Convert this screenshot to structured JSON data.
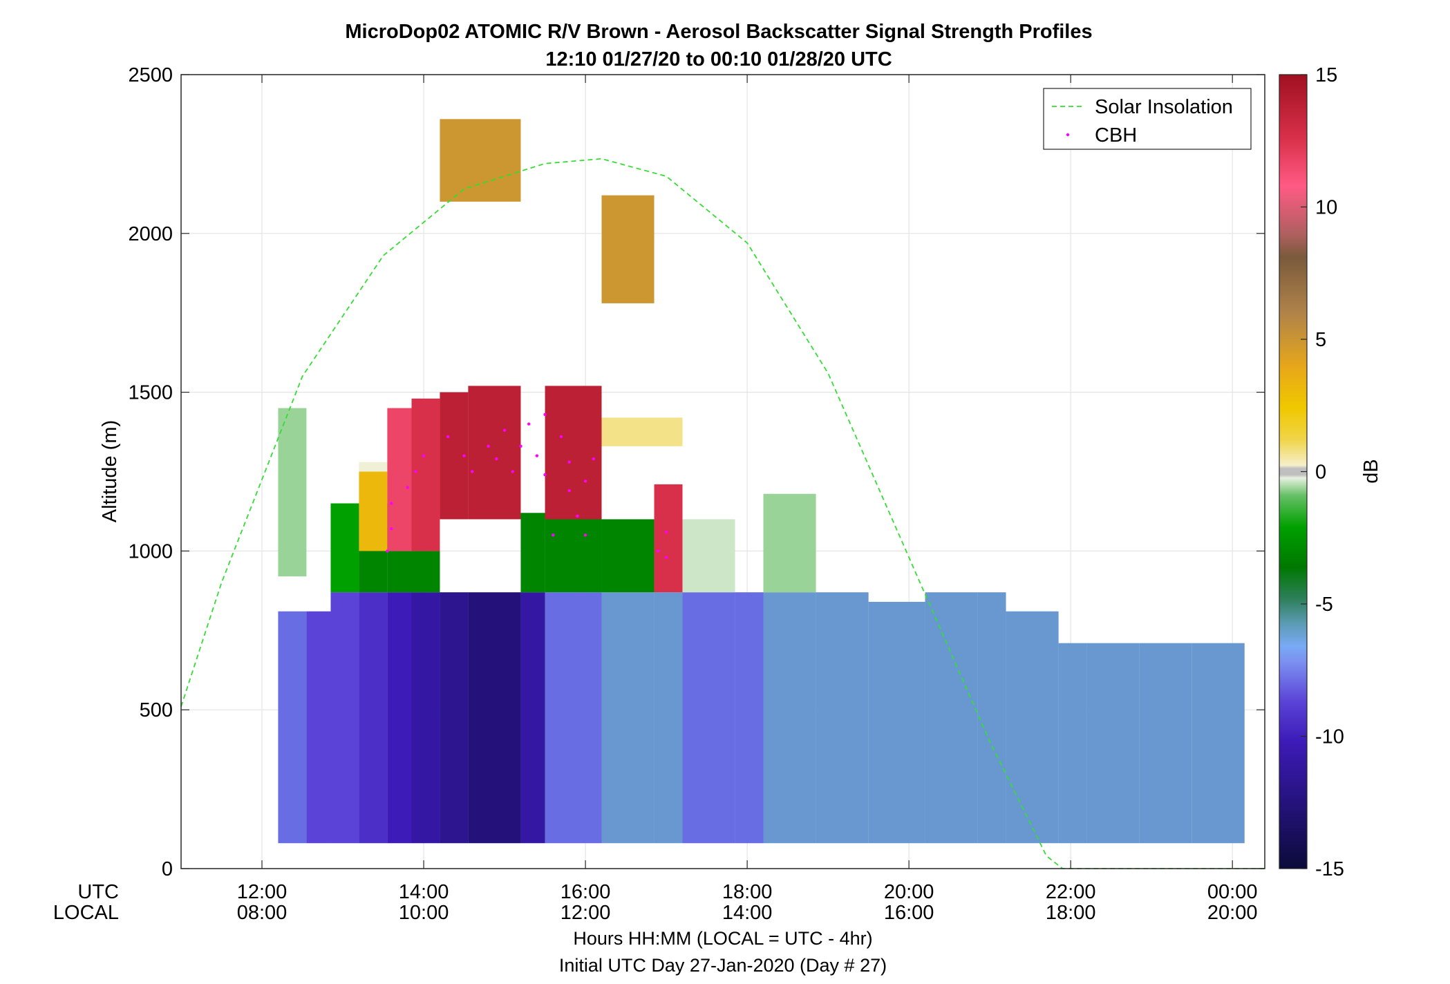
{
  "figure": {
    "title_line1": "MicroDop02 ATOMIC R/V Brown - Aerosol Backscatter Signal Strength Profiles",
    "title_line2": "12:10 01/27/20 to 00:10 01/28/20  UTC",
    "xlabel_line1": "Hours HH:MM  (LOCAL = UTC - 4hr)",
    "xlabel_line2": "Initial UTC Day 27-Jan-2020 (Day # 27)",
    "ylabel": "Altitude (m)",
    "row_label_utc": "UTC",
    "row_label_local": "LOCAL",
    "colorbar_label": "dB"
  },
  "chart_data": {
    "type": "heatmap",
    "x_axis": {
      "range_hours_utc": [
        11.0,
        24.4
      ],
      "ticks_utc": [
        12,
        14,
        16,
        18,
        20,
        22,
        24
      ],
      "tick_labels_utc": [
        "12:00",
        "14:00",
        "16:00",
        "18:00",
        "20:00",
        "22:00",
        "00:00"
      ],
      "tick_labels_local": [
        "08:00",
        "10:00",
        "12:00",
        "14:00",
        "16:00",
        "18:00",
        "20:00"
      ]
    },
    "y_axis": {
      "range": [
        0,
        2500
      ],
      "ticks": [
        0,
        500,
        1000,
        1500,
        2000,
        2500
      ],
      "tick_labels": [
        "0",
        "500",
        "1000",
        "1500",
        "2000",
        "2500"
      ]
    },
    "colorbar": {
      "range": [
        -15,
        15
      ],
      "ticks": [
        -15,
        -10,
        -5,
        0,
        5,
        10,
        15
      ],
      "tick_labels": [
        "-15",
        "-10",
        "-5",
        "0",
        "5",
        "10",
        "15"
      ]
    },
    "grid": true,
    "legend": {
      "position": "top-right",
      "entries": [
        {
          "label": "Solar Insolation",
          "style": "dashed-line",
          "color": "#33dd33"
        },
        {
          "label": "CBH",
          "style": "dot",
          "color": "#ff00ff"
        }
      ]
    },
    "series": [
      {
        "name": "Solar Insolation",
        "type": "line",
        "points": [
          [
            11.0,
            510
          ],
          [
            11.5,
            900
          ],
          [
            12.5,
            1550
          ],
          [
            13.5,
            1930
          ],
          [
            14.5,
            2140
          ],
          [
            15.5,
            2220
          ],
          [
            16.2,
            2235
          ],
          [
            17.0,
            2180
          ],
          [
            18.0,
            1970
          ],
          [
            19.0,
            1560
          ],
          [
            20.0,
            980
          ],
          [
            21.0,
            400
          ],
          [
            21.7,
            40
          ],
          [
            21.9,
            0
          ],
          [
            24.4,
            0
          ]
        ]
      },
      {
        "name": "CBH",
        "type": "scatter",
        "points": [
          [
            13.55,
            1000
          ],
          [
            13.6,
            1070
          ],
          [
            13.6,
            1150
          ],
          [
            13.8,
            1200
          ],
          [
            13.9,
            1250
          ],
          [
            14.0,
            1300
          ],
          [
            14.3,
            1360
          ],
          [
            14.5,
            1300
          ],
          [
            14.6,
            1250
          ],
          [
            14.8,
            1330
          ],
          [
            14.9,
            1290
          ],
          [
            15.0,
            1380
          ],
          [
            15.1,
            1250
          ],
          [
            15.2,
            1330
          ],
          [
            15.3,
            1400
          ],
          [
            15.4,
            1300
          ],
          [
            15.5,
            1240
          ],
          [
            15.5,
            1430
          ],
          [
            15.6,
            1050
          ],
          [
            15.7,
            1360
          ],
          [
            15.8,
            1280
          ],
          [
            15.8,
            1190
          ],
          [
            15.9,
            1110
          ],
          [
            16.0,
            1050
          ],
          [
            16.0,
            1220
          ],
          [
            16.1,
            1290
          ],
          [
            16.9,
            1000
          ],
          [
            17.0,
            980
          ],
          [
            17.0,
            1060
          ]
        ]
      },
      {
        "name": "Backscatter (dB)",
        "type": "heatmap",
        "blocks": [
          {
            "t": [
              12.2,
              12.55
            ],
            "z": [
              920,
              1450
            ],
            "v": -2
          },
          {
            "t": [
              12.2,
              12.55
            ],
            "z": [
              80,
              810
            ],
            "v": -10
          },
          {
            "t": [
              12.55,
              12.85
            ],
            "z": [
              80,
              810
            ],
            "v": -10.5
          },
          {
            "t": [
              12.85,
              13.2
            ],
            "z": [
              80,
              870
            ],
            "v": -10.5
          },
          {
            "t": [
              12.85,
              13.2
            ],
            "z": [
              870,
              1150
            ],
            "v": -5
          },
          {
            "t": [
              13.2,
              13.55
            ],
            "z": [
              80,
              870
            ],
            "v": -11
          },
          {
            "t": [
              13.2,
              13.55
            ],
            "z": [
              870,
              1150
            ],
            "v": -6
          },
          {
            "t": [
              13.2,
              13.55
            ],
            "z": [
              1000,
              1250
            ],
            "v": 3
          },
          {
            "t": [
              13.2,
              13.55
            ],
            "z": [
              1250,
              1280
            ],
            "v": 0
          },
          {
            "t": [
              13.55,
              13.85
            ],
            "z": [
              80,
              870
            ],
            "v": -11.5
          },
          {
            "t": [
              13.55,
              13.85
            ],
            "z": [
              870,
              1000
            ],
            "v": -6
          },
          {
            "t": [
              13.55,
              13.85
            ],
            "z": [
              1000,
              1450
            ],
            "v": 12
          },
          {
            "t": [
              13.85,
              14.2
            ],
            "z": [
              80,
              870
            ],
            "v": -12
          },
          {
            "t": [
              13.85,
              14.2
            ],
            "z": [
              870,
              1000
            ],
            "v": -6
          },
          {
            "t": [
              13.85,
              14.2
            ],
            "z": [
              1000,
              1480
            ],
            "v": 13
          },
          {
            "t": [
              14.2,
              14.55
            ],
            "z": [
              80,
              870
            ],
            "v": -12.5
          },
          {
            "t": [
              14.2,
              14.55
            ],
            "z": [
              1100,
              1500
            ],
            "v": 14
          },
          {
            "t": [
              14.55,
              15.2
            ],
            "z": [
              80,
              870
            ],
            "v": -13
          },
          {
            "t": [
              14.55,
              15.2
            ],
            "z": [
              1100,
              1520
            ],
            "v": 14
          },
          {
            "t": [
              15.2,
              15.5
            ],
            "z": [
              80,
              870
            ],
            "v": -12
          },
          {
            "t": [
              15.2,
              15.5
            ],
            "z": [
              870,
              1120
            ],
            "v": -6
          },
          {
            "t": [
              15.5,
              16.2
            ],
            "z": [
              80,
              870
            ],
            "v": -10
          },
          {
            "t": [
              15.5,
              16.2
            ],
            "z": [
              870,
              1120
            ],
            "v": -6
          },
          {
            "t": [
              15.5,
              16.2
            ],
            "z": [
              1100,
              1520
            ],
            "v": 14
          },
          {
            "t": [
              16.2,
              16.85
            ],
            "z": [
              80,
              870
            ],
            "v": -9
          },
          {
            "t": [
              16.2,
              16.85
            ],
            "z": [
              870,
              1100
            ],
            "v": -6
          },
          {
            "t": [
              16.2,
              16.85
            ],
            "z": [
              1780,
              2120
            ],
            "v": 5
          },
          {
            "t": [
              16.2,
              17.2
            ],
            "z": [
              1330,
              1420
            ],
            "v": 1
          },
          {
            "t": [
              16.85,
              17.2
            ],
            "z": [
              80,
              870
            ],
            "v": -9
          },
          {
            "t": [
              16.85,
              17.2
            ],
            "z": [
              870,
              1210
            ],
            "v": 13
          },
          {
            "t": [
              14.2,
              15.2
            ],
            "z": [
              2100,
              2360
            ],
            "v": 5
          },
          {
            "t": [
              17.2,
              17.85
            ],
            "z": [
              80,
              870
            ],
            "v": -10
          },
          {
            "t": [
              17.2,
              17.85
            ],
            "z": [
              870,
              1100
            ],
            "v": -1
          },
          {
            "t": [
              17.85,
              18.2
            ],
            "z": [
              80,
              870
            ],
            "v": -10
          },
          {
            "t": [
              18.2,
              18.85
            ],
            "z": [
              80,
              870
            ],
            "v": -9
          },
          {
            "t": [
              18.2,
              18.85
            ],
            "z": [
              870,
              1180
            ],
            "v": -2
          },
          {
            "t": [
              18.85,
              19.5
            ],
            "z": [
              80,
              870
            ],
            "v": -9
          },
          {
            "t": [
              19.5,
              20.2
            ],
            "z": [
              80,
              840
            ],
            "v": -9
          },
          {
            "t": [
              20.2,
              20.85
            ],
            "z": [
              80,
              870
            ],
            "v": -9
          },
          {
            "t": [
              20.85,
              21.2
            ],
            "z": [
              80,
              870
            ],
            "v": -9
          },
          {
            "t": [
              21.2,
              21.85
            ],
            "z": [
              80,
              810
            ],
            "v": -9
          },
          {
            "t": [
              21.85,
              22.2
            ],
            "z": [
              80,
              710
            ],
            "v": -9
          },
          {
            "t": [
              22.2,
              22.85
            ],
            "z": [
              80,
              710
            ],
            "v": -9
          },
          {
            "t": [
              22.85,
              23.5
            ],
            "z": [
              80,
              710
            ],
            "v": -9
          },
          {
            "t": [
              23.5,
              24.15
            ],
            "z": [
              80,
              710
            ],
            "v": -9
          }
        ]
      }
    ]
  }
}
